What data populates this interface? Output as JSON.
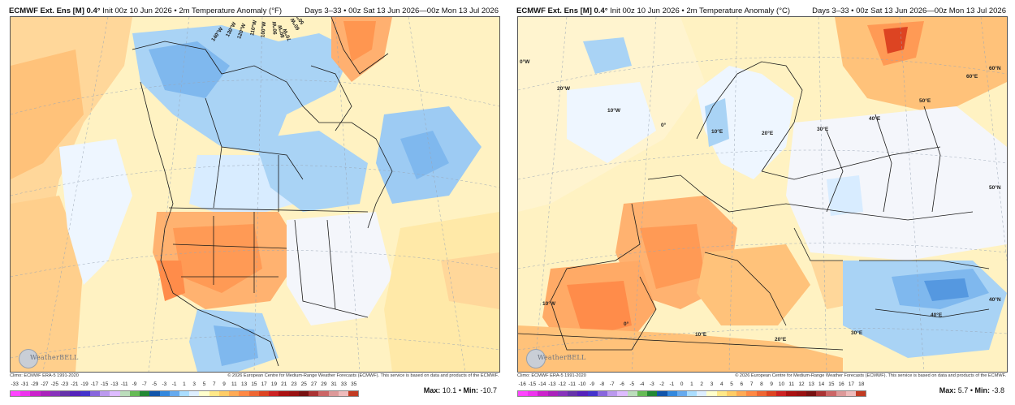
{
  "left": {
    "title_bold": "ECMWF Ext. Ens [M] 0.4°",
    "title_rest": " Init 00z 10 Jun 2026 • 2m Temperature Anomaly (°F)",
    "days": "Days 3–33 • 00z Sat 13 Jun 2026—00z Mon 13 Jul 2026",
    "climo": "Climo: ECMWF ERA-5 1991-2020",
    "copyright": "© 2026 European Centre for Medium-Range Weather Forecasts (ECMWF). This service is based on data and products of the ECMWF.",
    "logo_text": "WeatherBELL",
    "max_label": "Max:",
    "max_value": "10.1",
    "min_label": "Min:",
    "min_value": "-10.7",
    "coords": {
      "c140": "140°W",
      "c130": "130°W",
      "c120": "120°W",
      "c110": "110°W",
      "c100": "100°W",
      "c90": "90°W",
      "c80": "80°W",
      "c70": "70°W",
      "c60": "60°W",
      "c50": "50°W"
    },
    "colorbar": {
      "labels": [
        "-33",
        "-31",
        "-29",
        "-27",
        "-25",
        "-23",
        "-21",
        "-19",
        "-17",
        "-15",
        "-13",
        "-11",
        "-9",
        "-7",
        "-5",
        "-3",
        "-1",
        "1",
        "3",
        "5",
        "7",
        "9",
        "11",
        "13",
        "15",
        "17",
        "19",
        "21",
        "23",
        "25",
        "27",
        "29",
        "31",
        "33",
        "35"
      ],
      "colors": [
        "#ff44ff",
        "#ee33ee",
        "#cc22cc",
        "#aa22bb",
        "#8833bb",
        "#6633aa",
        "#5522bb",
        "#4433cc",
        "#8866dd",
        "#bb99ee",
        "#ddbbff",
        "#bbddbb",
        "#66bb55",
        "#228833",
        "#1155aa",
        "#3388dd",
        "#66aaee",
        "#aaddff",
        "#ddeeff",
        "#ffffcc",
        "#ffe888",
        "#ffcc66",
        "#ffaa55",
        "#ff8844",
        "#ee6633",
        "#dd4422",
        "#cc2222",
        "#aa1111",
        "#991111",
        "#771111",
        "#aa3333",
        "#cc6666",
        "#dd9999",
        "#eebbbb",
        "#c23b22"
      ]
    }
  },
  "right": {
    "title_bold": "ECMWF Ext. Ens [M] 0.4°",
    "title_rest": " Init 00z 10 Jun 2026 • 2m Temperature Anomaly (°C)",
    "days": "Days 3–33 • 00z Sat 13 Jun 2026—00z Mon 13 Jul 2026",
    "climo": "Climo: ECMWF ERA-5 1991-2020",
    "copyright": "© 2026 European Centre for Medium-Range Weather Forecasts (ECMWF). This service is based on data and products of the ECMWF.",
    "logo_text": "WeatherBELL",
    "max_label": "Max:",
    "max_value": "5.7",
    "min_label": "Min:",
    "min_value": "-3.8",
    "coords": {
      "w0": "0°W",
      "w20": "20°W",
      "w10": "10°W",
      "n0": "0°",
      "e10": "10°E",
      "e20": "20°E",
      "e30": "30°E",
      "e40": "40°E",
      "e50": "50°E",
      "e60": "60°E",
      "n60": "60°N",
      "n50": "50°N",
      "n40": "40°N",
      "w10b": "10°W",
      "s0": "0°",
      "e10b": "10°E",
      "e20b": "20°E",
      "e30b": "30°E",
      "e40b": "40°E"
    },
    "colorbar": {
      "labels": [
        "-16",
        "-15",
        "-14",
        "-13",
        "-12",
        "-11",
        "-10",
        "-9",
        "-8",
        "-7",
        "-6",
        "-5",
        "-4",
        "-3",
        "-2",
        "-1",
        "0",
        "1",
        "2",
        "3",
        "4",
        "5",
        "6",
        "7",
        "8",
        "9",
        "10",
        "11",
        "12",
        "13",
        "14",
        "15",
        "16",
        "17",
        "18"
      ],
      "colors": [
        "#ff44ff",
        "#ee33ee",
        "#cc22cc",
        "#aa22bb",
        "#8833bb",
        "#6633aa",
        "#5522bb",
        "#4433cc",
        "#8866dd",
        "#bb99ee",
        "#ddbbff",
        "#bbddbb",
        "#66bb55",
        "#228833",
        "#1155aa",
        "#3388dd",
        "#66aaee",
        "#aaddff",
        "#ddeeff",
        "#ffffcc",
        "#ffe888",
        "#ffcc66",
        "#ffaa55",
        "#ff8844",
        "#ee6633",
        "#dd4422",
        "#cc2222",
        "#aa1111",
        "#991111",
        "#771111",
        "#aa3333",
        "#cc6666",
        "#dd9999",
        "#eebbbb",
        "#c23b22"
      ]
    }
  }
}
